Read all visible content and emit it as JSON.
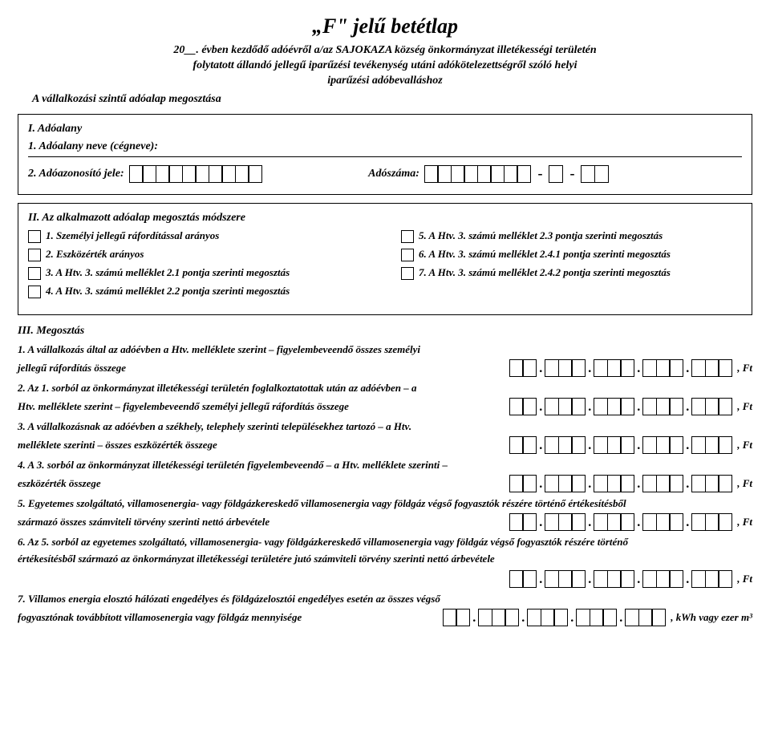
{
  "header": {
    "title": "„F\" jelű betétlap",
    "year_prefix": "20__.",
    "line1": " évben kezdődő adóévről a/az SAJOKAZA község önkormányzat illetékességi területén",
    "line2": "folytatott állandó jellegű iparűzési tevékenység utáni adókötelezettségről szóló helyi",
    "line3": "iparűzési adóbevalláshoz",
    "bottom": "A vállalkozási szintű adóalap megosztása"
  },
  "section1": {
    "title": "I. Adóalany",
    "name_label": "1. Adóalany neve (cégneve):",
    "tax_id_label": "2. Adóazonosító jele:",
    "tax_num_label": "Adószáma:",
    "cells_a": 10,
    "cells_b1": 8,
    "cells_b2": 1,
    "cells_b3": 2
  },
  "section2": {
    "title": "II. Az alkalmazott adóalap megosztás módszere",
    "left": [
      "1. Személyi jellegű ráfordítással arányos",
      "2. Eszközérték arányos",
      "3. A Htv. 3. számú melléklet 2.1 pontja szerinti megosztás",
      "4. A Htv. 3. számú melléklet 2.2 pontja szerinti megosztás"
    ],
    "right": [
      "5. A Htv. 3. számú melléklet 2.3 pontja szerinti megosztás",
      "6. A Htv. 3. számú melléklet 2.4.1 pontja szerinti megosztás",
      "7. A Htv. 3. számú melléklet 2.4.2 pontja szerinti megosztás"
    ]
  },
  "section3": {
    "title": "III. Megosztás",
    "items": [
      {
        "pre": "1. A vállalkozás által az adóévben a Htv. melléklete szerint – figyelembeveendő összes személyi",
        "post": "jellegű ráfordítás összege",
        "unit": ", Ft"
      },
      {
        "pre": "2. Az 1. sorból az önkormányzat illetékességi területén foglalkoztatottak után az adóévben – a",
        "post": "Htv. melléklete szerint – figyelembeveendő személyi jellegű ráfordítás összege",
        "unit": ", Ft"
      },
      {
        "pre": "3. A vállalkozásnak az adóévben a székhely, telephely szerinti településekhez tartozó – a Htv.",
        "post": "melléklete szerinti – összes eszközérték összege",
        "unit": ", Ft"
      },
      {
        "pre": "4. A 3. sorból az önkormányzat illetékességi területén figyelembeveendő – a Htv. melléklete szerinti –",
        "post": "eszközérték összege",
        "unit": ", Ft"
      },
      {
        "pre": "5. Egyetemes szolgáltató, villamosenergia- vagy földgázkereskedő villamosenergia vagy földgáz végső fogyasztók részére történő értékesítésből",
        "post": "származó összes számviteli törvény szerinti nettó árbevétele",
        "unit": ", Ft"
      },
      {
        "pre": "6. Az 5. sorból az egyetemes szolgáltató, villamosenergia- vagy földgázkereskedő villamosenergia vagy földgáz végső fogyasztók részére történő",
        "post": "értékesítésből származó az önkormányzat illetékességi területére jutó számviteli törvény szerinti nettó árbevétele",
        "unit": ", Ft"
      },
      {
        "pre": "7. Villamos energia elosztó hálózati engedélyes és földgázelosztói engedélyes esetén az összes végső",
        "post": "fogyasztónak továbbított villamosenergia vagy földgáz mennyisége",
        "unit": ", kWh vagy ezer m³"
      }
    ],
    "amount_groups": [
      2,
      3,
      3,
      3,
      3
    ]
  },
  "style": {
    "border_color": "#000000",
    "background": "#ffffff"
  }
}
